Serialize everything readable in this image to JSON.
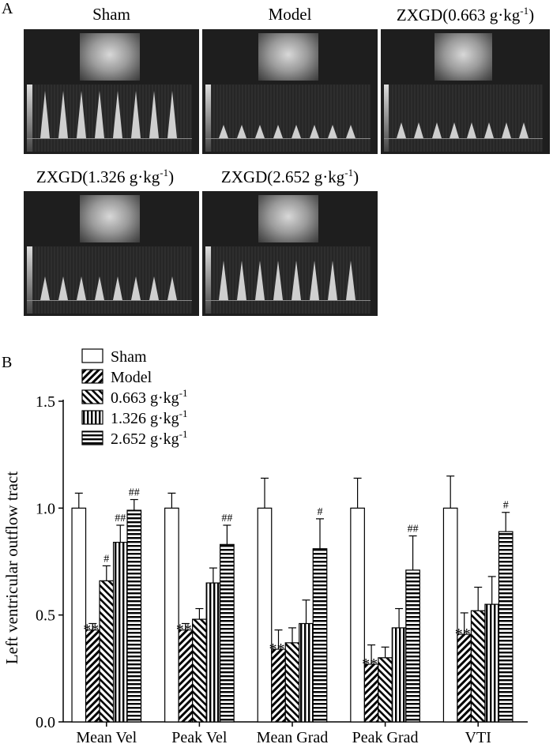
{
  "panels": {
    "a_label": "A",
    "b_label": "B"
  },
  "images": [
    {
      "title_main": "Sham",
      "sup": ""
    },
    {
      "title_main": "Model",
      "sup": ""
    },
    {
      "title_main": "ZXGD(0.663 g·kg",
      "sup": "-1",
      "close": ")"
    },
    {
      "title_main": "ZXGD(1.326 g·kg",
      "sup": "-1",
      "close": ")"
    },
    {
      "title_main": "ZXGD(2.652 g·kg",
      "sup": "-1",
      "close": ")"
    }
  ],
  "image_peak_levels": [
    0.9,
    0.25,
    0.3,
    0.45,
    0.75
  ],
  "chart_data": {
    "type": "bar",
    "ylabel": "Left ventricular outflow tract",
    "ylim": [
      0,
      1.5
    ],
    "yticks": [
      "0.0",
      "0.5",
      "1.0",
      "1.5"
    ],
    "categories": [
      "Mean Vel",
      "Peak Vel",
      "Mean Grad",
      "Peak Grad",
      "VTI"
    ],
    "series": [
      {
        "name": "Sham",
        "sup": "",
        "pattern": "white",
        "values": [
          1.0,
          1.0,
          1.0,
          1.0,
          1.0
        ],
        "errors": [
          0.07,
          0.07,
          0.14,
          0.14,
          0.15
        ],
        "marks": [
          "",
          "",
          "",
          "",
          ""
        ]
      },
      {
        "name": "Model",
        "sup": "",
        "pattern": "diag-fwd",
        "values": [
          0.43,
          0.43,
          0.34,
          0.27,
          0.41
        ],
        "errors": [
          0.03,
          0.03,
          0.09,
          0.09,
          0.1
        ],
        "marks": [
          "**",
          "**",
          "**",
          "**",
          "**"
        ]
      },
      {
        "name": "0.663 g·kg",
        "sup": "-1",
        "pattern": "diag-back",
        "values": [
          0.66,
          0.48,
          0.37,
          0.3,
          0.52
        ],
        "errors": [
          0.07,
          0.05,
          0.07,
          0.05,
          0.11
        ],
        "marks": [
          "#",
          "",
          "",
          "",
          ""
        ]
      },
      {
        "name": "1.326 g·kg",
        "sup": "-1",
        "pattern": "vertical",
        "values": [
          0.84,
          0.65,
          0.46,
          0.44,
          0.55
        ],
        "errors": [
          0.08,
          0.07,
          0.11,
          0.09,
          0.13
        ],
        "marks": [
          "##",
          "",
          "",
          "",
          ""
        ]
      },
      {
        "name": "2.652 g·kg",
        "sup": "-1",
        "pattern": "horizontal",
        "values": [
          0.99,
          0.83,
          0.81,
          0.71,
          0.89
        ],
        "errors": [
          0.05,
          0.09,
          0.14,
          0.16,
          0.09
        ],
        "marks": [
          "##",
          "##",
          "#",
          "##",
          "#"
        ]
      }
    ],
    "legend_position": "top-left inside plot",
    "grid": false
  }
}
